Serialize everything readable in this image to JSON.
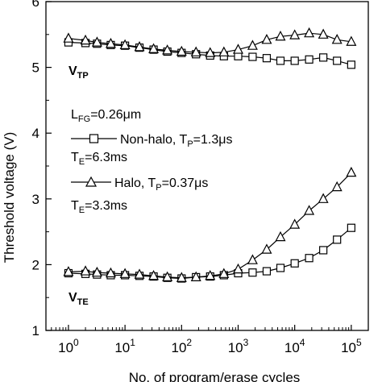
{
  "chart_data": {
    "type": "line",
    "xscale": "log",
    "xlim": [
      0.4,
      200000
    ],
    "ylim": [
      1,
      6
    ],
    "grid": false,
    "xlabel": "No. of program/erase cycles",
    "ylabel": "Threshold voltage (V)",
    "x_ticks": [
      {
        "value": 1,
        "base": "10",
        "exp": "0"
      },
      {
        "value": 10,
        "base": "10",
        "exp": "1"
      },
      {
        "value": 100,
        "base": "10",
        "exp": "2"
      },
      {
        "value": 1000,
        "base": "10",
        "exp": "3"
      },
      {
        "value": 10000,
        "base": "10",
        "exp": "4"
      },
      {
        "value": 100000,
        "base": "10",
        "exp": "5"
      }
    ],
    "y_ticks": [
      1,
      2,
      3,
      4,
      5,
      6
    ],
    "annotations": {
      "vtp": {
        "main": "V",
        "sub": "TP"
      },
      "vte": {
        "main": "V",
        "sub": "TE"
      },
      "lfg": {
        "main": "L",
        "sub": "FG",
        "rest": "=0.26μm"
      },
      "te1": {
        "main": "T",
        "sub": "E",
        "rest": "=6.3ms"
      },
      "te2": {
        "main": "T",
        "sub": "E",
        "rest": "=3.3ms"
      }
    },
    "legend": [
      {
        "marker": "square",
        "text": "Non-halo, T",
        "sub": "P",
        "rest": "=1.3μs"
      },
      {
        "marker": "triangle",
        "text": "Halo, T",
        "sub": "P",
        "rest": "=0.37μs"
      }
    ],
    "series": [
      {
        "marker": "square",
        "x": [
          1,
          2,
          3.2,
          5.6,
          10,
          18,
          32,
          56,
          100,
          180,
          320,
          560,
          1000,
          1800,
          3200,
          5600,
          10000,
          18000,
          32000,
          56000,
          100000
        ],
        "y": [
          5.38,
          5.37,
          5.36,
          5.34,
          5.33,
          5.3,
          5.27,
          5.24,
          5.22,
          5.2,
          5.18,
          5.17,
          5.17,
          5.16,
          5.14,
          5.1,
          5.1,
          5.12,
          5.15,
          5.1,
          5.04
        ]
      },
      {
        "marker": "triangle",
        "x": [
          1,
          2,
          3.2,
          5.6,
          10,
          18,
          32,
          56,
          100,
          180,
          320,
          560,
          1000,
          1800,
          3200,
          5600,
          10000,
          18000,
          32000,
          56000,
          100000
        ],
        "y": [
          5.44,
          5.41,
          5.38,
          5.36,
          5.34,
          5.31,
          5.28,
          5.26,
          5.24,
          5.23,
          5.22,
          5.23,
          5.27,
          5.33,
          5.42,
          5.47,
          5.49,
          5.52,
          5.5,
          5.42,
          5.39
        ]
      },
      {
        "marker": "square",
        "x": [
          1,
          2,
          3.2,
          5.6,
          10,
          18,
          32,
          56,
          100,
          180,
          320,
          560,
          1000,
          1800,
          3200,
          5600,
          10000,
          18000,
          32000,
          56000,
          100000
        ],
        "y": [
          1.87,
          1.86,
          1.85,
          1.84,
          1.84,
          1.83,
          1.82,
          1.8,
          1.79,
          1.81,
          1.82,
          1.84,
          1.87,
          1.88,
          1.9,
          1.95,
          2.02,
          2.1,
          2.22,
          2.38,
          2.56
        ]
      },
      {
        "marker": "triangle",
        "x": [
          1,
          2,
          3.2,
          5.6,
          10,
          18,
          32,
          56,
          100,
          180,
          320,
          560,
          1000,
          1800,
          3200,
          5600,
          10000,
          18000,
          32000,
          56000,
          100000
        ],
        "y": [
          1.89,
          1.9,
          1.88,
          1.87,
          1.86,
          1.85,
          1.83,
          1.81,
          1.8,
          1.81,
          1.83,
          1.86,
          1.93,
          2.07,
          2.23,
          2.42,
          2.61,
          2.82,
          3.0,
          3.18,
          3.4
        ]
      }
    ]
  }
}
